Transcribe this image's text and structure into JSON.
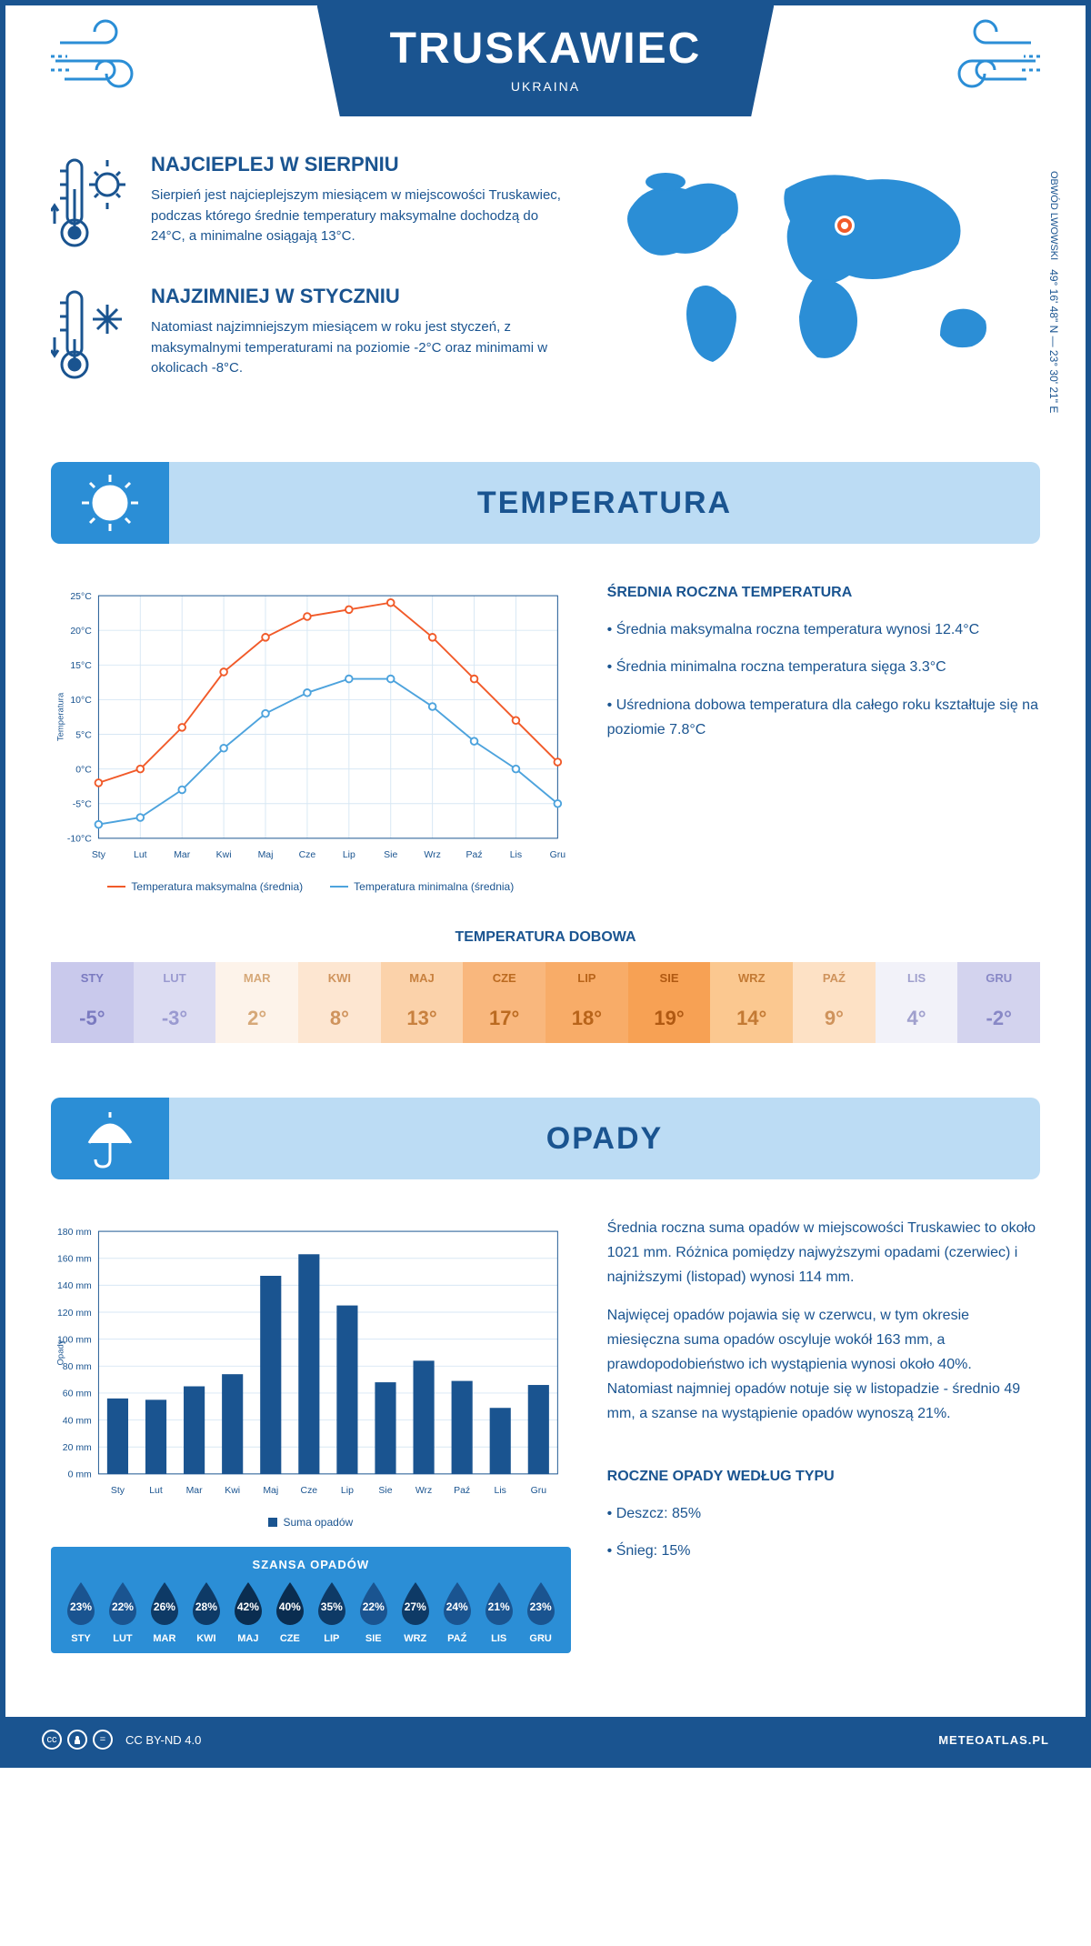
{
  "header": {
    "city": "TRUSKAWIEC",
    "country": "UKRAINA"
  },
  "intro": {
    "warm": {
      "title": "NAJCIEPLEJ W SIERPNIU",
      "text": "Sierpień jest najcieplejszym miesiącem w miejscowości Truskawiec, podczas którego średnie temperatury maksymalne dochodzą do 24°C, a minimalne osiągają 13°C."
    },
    "cold": {
      "title": "NAJZIMNIEJ W STYCZNIU",
      "text": "Natomiast najzimniejszym miesiącem w roku jest styczeń, z maksymalnymi temperaturami na poziomie -2°C oraz minimami w okolicach -8°C."
    },
    "coords": "49° 16' 48\" N — 23° 30' 21\" E",
    "region": "OBWÓD LWOWSKI"
  },
  "temp_section": {
    "title": "TEMPERATURA",
    "chart": {
      "type": "line",
      "months": [
        "Sty",
        "Lut",
        "Mar",
        "Kwi",
        "Maj",
        "Cze",
        "Lip",
        "Sie",
        "Wrz",
        "Paź",
        "Lis",
        "Gru"
      ],
      "max_series": [
        -2,
        0,
        6,
        14,
        19,
        22,
        23,
        24,
        19,
        13,
        7,
        1
      ],
      "min_series": [
        -8,
        -7,
        -3,
        3,
        8,
        11,
        13,
        13,
        9,
        4,
        0,
        -5
      ],
      "ylim": [
        -10,
        25
      ],
      "ytick_step": 5,
      "y_label": "Temperatura",
      "max_color": "#f15a29",
      "min_color": "#4da3dd",
      "grid_color": "#d7e7f4",
      "axis_color": "#1a5490",
      "line_width": 2,
      "marker": "circle",
      "marker_size": 4,
      "legend_max": "Temperatura maksymalna (średnia)",
      "legend_min": "Temperatura minimalna (średnia)"
    },
    "annual": {
      "title": "ŚREDNIA ROCZNA TEMPERATURA",
      "b1": "• Średnia maksymalna roczna temperatura wynosi 12.4°C",
      "b2": "• Średnia minimalna roczna temperatura sięga 3.3°C",
      "b3": "• Uśredniona dobowa temperatura dla całego roku kształtuje się na poziomie 7.8°C"
    },
    "daily": {
      "title": "TEMPERATURA DOBOWA",
      "months": [
        "STY",
        "LUT",
        "MAR",
        "KWI",
        "MAJ",
        "CZE",
        "LIP",
        "SIE",
        "WRZ",
        "PAŹ",
        "LIS",
        "GRU"
      ],
      "values": [
        "-5°",
        "-3°",
        "2°",
        "8°",
        "13°",
        "17°",
        "18°",
        "19°",
        "14°",
        "9°",
        "4°",
        "-2°"
      ],
      "colors": [
        "#c9c9ec",
        "#dcdcf2",
        "#fdf3ea",
        "#fde6d1",
        "#fbd2aa",
        "#f9b77d",
        "#f8ac68",
        "#f7a154",
        "#fbc890",
        "#fde1c5",
        "#f2f2f9",
        "#d3d3ee"
      ],
      "label_colors": [
        "#7a7ac0",
        "#9a9ad0",
        "#d6a878",
        "#cf935c",
        "#c8813f",
        "#bb6a20",
        "#b8641a",
        "#b05912",
        "#c37a34",
        "#cf935c",
        "#a0a0cd",
        "#8888c6"
      ]
    }
  },
  "precip_section": {
    "title": "OPADY",
    "chart": {
      "type": "bar",
      "months": [
        "Sty",
        "Lut",
        "Mar",
        "Kwi",
        "Maj",
        "Cze",
        "Lip",
        "Sie",
        "Wrz",
        "Paź",
        "Lis",
        "Gru"
      ],
      "values": [
        56,
        55,
        65,
        74,
        147,
        163,
        125,
        68,
        84,
        69,
        49,
        66
      ],
      "ylim": [
        0,
        180
      ],
      "ytick_step": 20,
      "y_label": "Opady",
      "bar_color": "#1a5490",
      "grid_color": "#d7e7f4",
      "axis_color": "#1a5490",
      "bar_width": 0.55,
      "legend": "Suma opadów"
    },
    "text": {
      "p1": "Średnia roczna suma opadów w miejscowości Truskawiec to około 1021 mm. Różnica pomiędzy najwyższymi opadami (czerwiec) i najniższymi (listopad) wynosi 114 mm.",
      "p2": "Najwięcej opadów pojawia się w czerwcu, w tym okresie miesięczna suma opadów oscyluje wokół 163 mm, a prawdopodobieństwo ich wystąpienia wynosi około 40%. Natomiast najmniej opadów notuje się w listopadzie - średnio 49 mm, a szanse na wystąpienie opadów wynoszą 21%."
    },
    "chance": {
      "title": "SZANSA OPADÓW",
      "months": [
        "STY",
        "LUT",
        "MAR",
        "KWI",
        "MAJ",
        "CZE",
        "LIP",
        "SIE",
        "WRZ",
        "PAŹ",
        "LIS",
        "GRU"
      ],
      "values": [
        "23%",
        "22%",
        "26%",
        "28%",
        "42%",
        "40%",
        "35%",
        "22%",
        "27%",
        "24%",
        "21%",
        "23%"
      ],
      "drop_colors": [
        "#1a5490",
        "#1a5490",
        "#0e3a66",
        "#0e3a66",
        "#0a2d50",
        "#0a2d50",
        "#0e3a66",
        "#1a5490",
        "#0e3a66",
        "#1a5490",
        "#1a5490",
        "#1a5490"
      ]
    },
    "by_type": {
      "title": "ROCZNE OPADY WEDŁUG TYPU",
      "b1": "• Deszcz: 85%",
      "b2": "• Śnieg: 15%"
    }
  },
  "footer": {
    "license": "CC BY-ND 4.0",
    "site": "METEOATLAS.PL"
  },
  "colors": {
    "primary": "#1a5490",
    "accent": "#2b8ed6",
    "light": "#bcdcf4"
  }
}
